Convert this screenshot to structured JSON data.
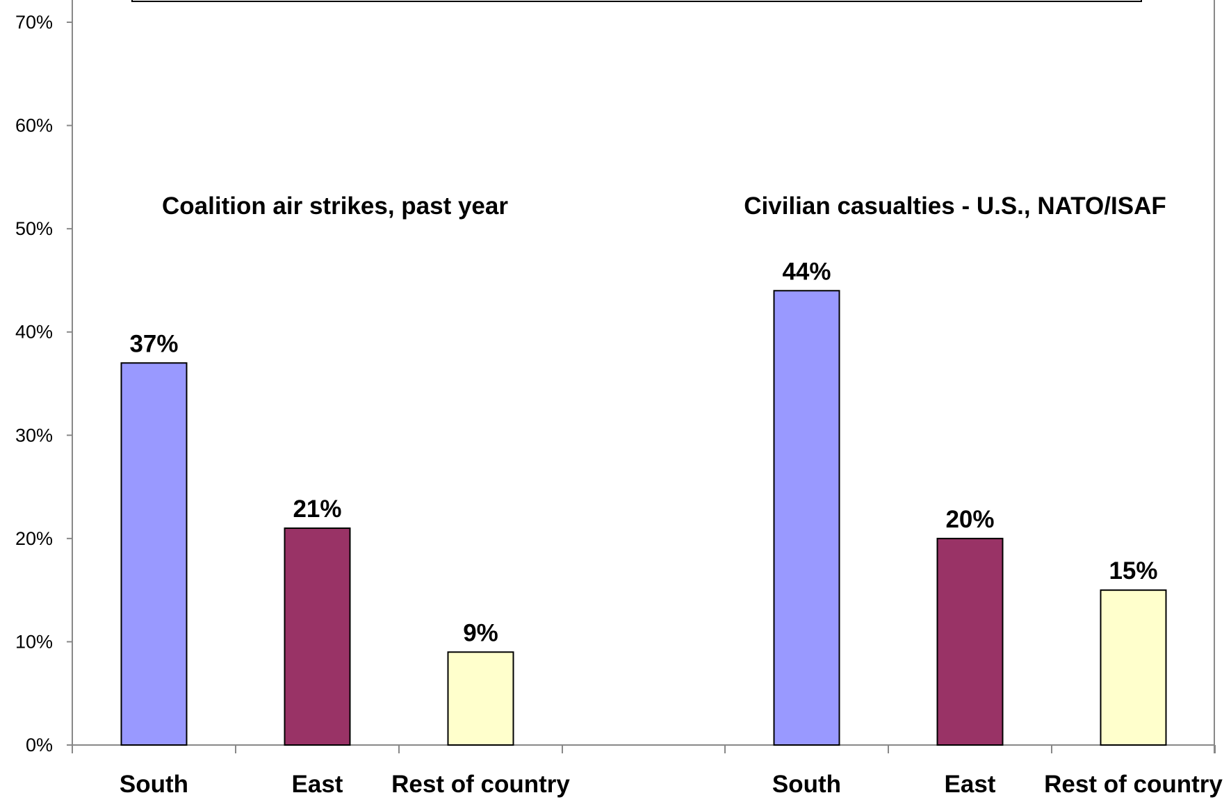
{
  "chart_data": {
    "type": "bar",
    "y_ticks": [
      "0%",
      "10%",
      "20%",
      "30%",
      "40%",
      "50%",
      "60%",
      "70%"
    ],
    "ylim": [
      0,
      70
    ],
    "grid": false,
    "groups": [
      {
        "title": "Coalition air strikes, past year",
        "categories": [
          "South",
          "East",
          "Rest of country"
        ],
        "values": [
          37,
          21,
          9
        ],
        "value_labels": [
          "37%",
          "21%",
          "9%"
        ]
      },
      {
        "title": "Civilian casualties - U.S., NATO/ISAF",
        "categories": [
          "South",
          "East",
          "Rest of country"
        ],
        "values": [
          44,
          20,
          15
        ],
        "value_labels": [
          "44%",
          "20%",
          "15%"
        ]
      }
    ],
    "bar_colors": [
      "#9999ff",
      "#993366",
      "#ffffcc"
    ]
  }
}
